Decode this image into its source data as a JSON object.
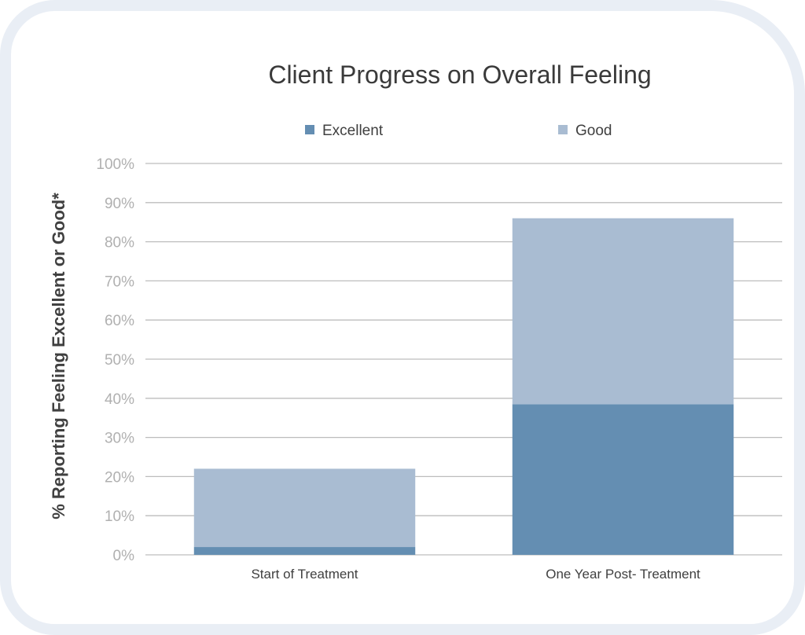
{
  "chart_data": {
    "type": "bar",
    "stacked": true,
    "title": "Client Progress on Overall Feeling",
    "xlabel": "",
    "ylabel": "% Reporting Feeling Excellent or Good*",
    "categories": [
      "Start of Treatment",
      "One Year Post- Treatment"
    ],
    "series": [
      {
        "name": "Excellent",
        "values": [
          2,
          38.5
        ],
        "color": "#648eb2"
      },
      {
        "name": "Good",
        "values": [
          20,
          47.5
        ],
        "color": "#a9bcd2"
      }
    ],
    "ylim": [
      0,
      100
    ],
    "yticks": [
      0,
      10,
      20,
      30,
      40,
      50,
      60,
      70,
      80,
      90,
      100
    ],
    "ytick_labels": [
      "0%",
      "10%",
      "20%",
      "30%",
      "40%",
      "50%",
      "60%",
      "70%",
      "80%",
      "90%",
      "100%"
    ],
    "grid": true,
    "legend_position": "top"
  }
}
